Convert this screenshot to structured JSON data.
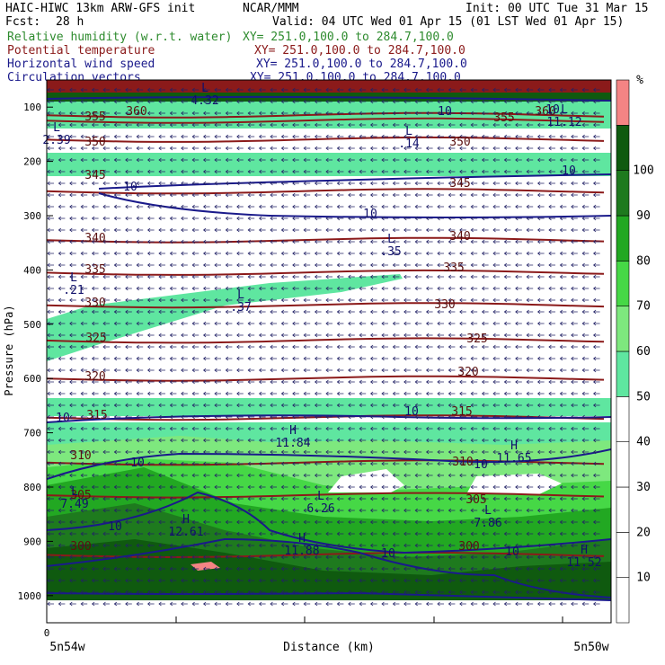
{
  "header": {
    "model": "HAIC-HIWC 13km ARW-GFS init",
    "org": "NCAR/MMM",
    "init": "Init: 00 UTC Tue 31 Mar 15",
    "fcst_label": "Fcst:",
    "fcst_value": "28 h",
    "valid": "Valid: 04 UTC Wed 01 Apr 15 (01 LST Wed 01 Apr 15)"
  },
  "fields": [
    {
      "name": "Relative humidity (w.r.t. water)",
      "xy": "XY= 251.0,100.0 to 284.7,100.0",
      "color": "#2e8b2e"
    },
    {
      "name": "Potential temperature",
      "xy": "XY= 251.0,100.0 to 284.7,100.0",
      "color": "#8b1a1a"
    },
    {
      "name": "Horizontal wind speed",
      "xy": "XY= 251.0,100.0 to 284.7,100.0",
      "color": "#1a1a8b"
    },
    {
      "name": "Circulation vectors",
      "xy": "XY= 251.0,100.0 to 284.7,100.0",
      "color": "#1a1a8b"
    }
  ],
  "chart_data": {
    "type": "heatmap",
    "ylabel": "Pressure (hPa)",
    "xlabel": "Distance (km)",
    "yticks": [
      100,
      200,
      300,
      400,
      500,
      600,
      700,
      800,
      900,
      1000
    ],
    "ylim": [
      1050,
      50
    ],
    "x_start_label": "0",
    "left_label": "5n54w",
    "right_label": "5n50w",
    "colorbar": {
      "unit": "%",
      "levels": [
        10,
        20,
        30,
        40,
        50,
        60,
        70,
        80,
        90,
        100
      ],
      "colors": [
        "#ffffff",
        "#ffffff",
        "#ffffff",
        "#ffffff",
        "#ffffff",
        "#5fe6a0",
        "#7ee87e",
        "#46d846",
        "#22a822",
        "#1e7a1e",
        "#0f5a0f",
        "#f48484"
      ]
    },
    "theta_contours": [
      {
        "label": "300",
        "p": 925
      },
      {
        "label": "305",
        "p": 815
      },
      {
        "label": "310",
        "p": 755
      },
      {
        "label": "315",
        "p": 672
      },
      {
        "label": "320",
        "p": 600
      },
      {
        "label": "325",
        "p": 530
      },
      {
        "label": "330",
        "p": 465
      },
      {
        "label": "335",
        "p": 405
      },
      {
        "label": "340",
        "p": 345
      },
      {
        "label": "345",
        "p": 255
      },
      {
        "label": "350",
        "p": 160
      },
      {
        "label": "355",
        "p": 125
      },
      {
        "label": "360",
        "p": 115
      }
    ],
    "theta_label_positions": [
      {
        "label": "300",
        "x": 90,
        "y": 612
      },
      {
        "label": "300",
        "x": 522,
        "y": 612
      },
      {
        "label": "305",
        "x": 90,
        "y": 555
      },
      {
        "label": "305",
        "x": 530,
        "y": 560
      },
      {
        "label": "310",
        "x": 90,
        "y": 511
      },
      {
        "label": "310",
        "x": 515,
        "y": 518
      },
      {
        "label": "315",
        "x": 108,
        "y": 466
      },
      {
        "label": "315",
        "x": 514,
        "y": 462
      },
      {
        "label": "320",
        "x": 106,
        "y": 423
      },
      {
        "label": "320",
        "x": 521,
        "y": 418
      },
      {
        "label": "325",
        "x": 107,
        "y": 380
      },
      {
        "label": "325",
        "x": 531,
        "y": 381
      },
      {
        "label": "330",
        "x": 106,
        "y": 341
      },
      {
        "label": "330",
        "x": 495,
        "y": 343
      },
      {
        "label": "335",
        "x": 106,
        "y": 304
      },
      {
        "label": "335",
        "x": 505,
        "y": 302
      },
      {
        "label": "340",
        "x": 106,
        "y": 269
      },
      {
        "label": "340",
        "x": 512,
        "y": 267
      },
      {
        "label": "345",
        "x": 106,
        "y": 199
      },
      {
        "label": "345",
        "x": 512,
        "y": 208
      },
      {
        "label": "350",
        "x": 106,
        "y": 162
      },
      {
        "label": "350",
        "x": 512,
        "y": 162
      },
      {
        "label": "355",
        "x": 106,
        "y": 134
      },
      {
        "label": "355",
        "x": 561,
        "y": 135
      },
      {
        "label": "360",
        "x": 152,
        "y": 128
      },
      {
        "label": "360",
        "x": 607,
        "y": 128
      }
    ],
    "wind_labels": [
      {
        "label": "10",
        "x": 145,
        "y": 212
      },
      {
        "label": "10",
        "x": 412,
        "y": 242
      },
      {
        "label": "10",
        "x": 633,
        "y": 194
      },
      {
        "label": "10",
        "x": 70,
        "y": 469
      },
      {
        "label": "10",
        "x": 458,
        "y": 462
      },
      {
        "label": "10",
        "x": 153,
        "y": 519
      },
      {
        "label": "10",
        "x": 535,
        "y": 521
      },
      {
        "label": "10",
        "x": 128,
        "y": 590
      },
      {
        "label": "10",
        "x": 432,
        "y": 620
      },
      {
        "label": "10",
        "x": 570,
        "y": 618
      },
      {
        "label": "10",
        "x": 495,
        "y": 128
      },
      {
        "label": "10",
        "x": 615,
        "y": 126
      }
    ],
    "extrema": [
      {
        "kind": "L",
        "value": "4.32",
        "x": 228,
        "y": 102
      },
      {
        "kind": "L",
        "value": "2.39",
        "x": 63,
        "y": 146
      },
      {
        "kind": "L",
        "value": ".14",
        "x": 455,
        "y": 150
      },
      {
        "kind": "L",
        "value": "11.12",
        "x": 628,
        "y": 126
      },
      {
        "kind": "L",
        "value": ".35",
        "x": 435,
        "y": 270
      },
      {
        "kind": "L",
        "value": ".21",
        "x": 82,
        "y": 313
      },
      {
        "kind": "L",
        "value": ".37",
        "x": 268,
        "y": 332
      },
      {
        "kind": "H",
        "value": "11.84",
        "x": 326,
        "y": 483
      },
      {
        "kind": "H",
        "value": "11.65",
        "x": 572,
        "y": 500
      },
      {
        "kind": "L",
        "value": "7.49",
        "x": 83,
        "y": 551
      },
      {
        "kind": "L",
        "value": "6.26",
        "x": 357,
        "y": 556
      },
      {
        "kind": "L",
        "value": "7.86",
        "x": 543,
        "y": 572
      },
      {
        "kind": "H",
        "value": "12.61",
        "x": 207,
        "y": 582
      },
      {
        "kind": "H",
        "value": "11.88",
        "x": 336,
        "y": 603
      },
      {
        "kind": "H",
        "value": "11.52",
        "x": 650,
        "y": 616
      }
    ]
  }
}
